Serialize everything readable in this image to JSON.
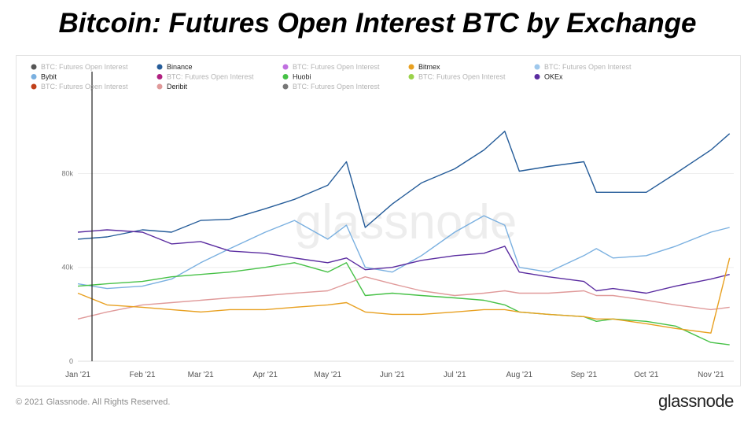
{
  "title": "Bitcoin: Futures Open Interest BTC by Exchange",
  "footer": {
    "copyright": "© 2021 Glassnode. All Rights Reserved.",
    "brand": "glassnode"
  },
  "watermark": "glassnode",
  "chart_data": {
    "type": "line",
    "title": "",
    "xlabel": "",
    "ylabel": "",
    "x_ticks": [
      "Jan '21",
      "Feb '21",
      "Mar '21",
      "Apr '21",
      "May '21",
      "Jun '21",
      "Jul '21",
      "Aug '21",
      "Sep '21",
      "Oct '21",
      "Nov '21"
    ],
    "y_ticks": [
      "0",
      "40k",
      "80k"
    ],
    "y_tick_values": [
      0,
      40000,
      80000
    ],
    "ylim": [
      0,
      110000
    ],
    "xlim": [
      "2021-01-01",
      "2021-11-12"
    ],
    "grid": true,
    "legend_placement": "top",
    "series_dates": [
      "2021-01-01",
      "2021-01-15",
      "2021-02-01",
      "2021-02-15",
      "2021-03-01",
      "2021-03-15",
      "2021-04-01",
      "2021-04-15",
      "2021-05-01",
      "2021-05-10",
      "2021-05-19",
      "2021-06-01",
      "2021-06-15",
      "2021-07-01",
      "2021-07-15",
      "2021-07-25",
      "2021-08-01",
      "2021-08-15",
      "2021-09-01",
      "2021-09-07",
      "2021-09-15",
      "2021-10-01",
      "2021-10-15",
      "2021-11-01",
      "2021-11-10"
    ],
    "series": [
      {
        "name": "Binance",
        "color": "#255c99",
        "values": [
          52000,
          53000,
          56000,
          55000,
          60000,
          60500,
          65000,
          69000,
          75000,
          85000,
          57000,
          67000,
          76000,
          82000,
          90000,
          98000,
          81000,
          83000,
          85000,
          72000,
          72000,
          72000,
          80000,
          90000,
          97000
        ]
      },
      {
        "name": "Bybit",
        "color": "#7ab0e0",
        "values": [
          33000,
          31000,
          32000,
          35000,
          42000,
          48000,
          55000,
          60000,
          52000,
          58000,
          40000,
          38000,
          45000,
          55000,
          62000,
          58000,
          40000,
          38000,
          45000,
          48000,
          44000,
          45000,
          49000,
          55000,
          57000
        ]
      },
      {
        "name": "OKEx",
        "color": "#5a2ca0",
        "values": [
          55000,
          56000,
          55000,
          50000,
          51000,
          47000,
          46000,
          44000,
          42000,
          44000,
          39000,
          40000,
          43000,
          45000,
          46000,
          49000,
          38000,
          36000,
          34000,
          30000,
          31000,
          29000,
          32000,
          35000,
          37000
        ]
      },
      {
        "name": "Huobi",
        "color": "#46c146",
        "values": [
          32000,
          33000,
          34000,
          36000,
          37000,
          38000,
          40000,
          42000,
          38000,
          42000,
          28000,
          29000,
          28000,
          27000,
          26000,
          24000,
          21000,
          20000,
          19000,
          17000,
          18000,
          17000,
          15000,
          8000,
          7000
        ]
      },
      {
        "name": "Deribit",
        "color": "#e09a9a",
        "values": [
          18000,
          21000,
          24000,
          25000,
          26000,
          27000,
          28000,
          29000,
          30000,
          33000,
          36000,
          33000,
          30000,
          28000,
          29000,
          30000,
          29000,
          29000,
          30000,
          28000,
          28000,
          26000,
          24000,
          22000,
          23000
        ]
      },
      {
        "name": "Bitmex",
        "color": "#e8a020",
        "values": [
          29000,
          24000,
          23000,
          22000,
          21000,
          22000,
          22000,
          23000,
          24000,
          25000,
          21000,
          20000,
          20000,
          21000,
          22000,
          22000,
          21000,
          20000,
          19000,
          18000,
          18000,
          16000,
          14000,
          12000,
          44000
        ]
      }
    ],
    "legend": [
      {
        "name": "BTC: Futures Open Interest",
        "color": "#555555",
        "faded": true
      },
      {
        "name": "Binance",
        "color": "#255c99",
        "faded": false
      },
      {
        "name": "BTC: Futures Open Interest",
        "color": "#c070e0",
        "faded": true
      },
      {
        "name": "Bitmex",
        "color": "#e8a020",
        "faded": false
      },
      {
        "name": "BTC: Futures Open Interest",
        "color": "#9fc8ec",
        "faded": true
      },
      {
        "name": "Bybit",
        "color": "#7ab0e0",
        "faded": false
      },
      {
        "name": "BTC: Futures Open Interest",
        "color": "#b02080",
        "faded": true
      },
      {
        "name": "Huobi",
        "color": "#46c146",
        "faded": false
      },
      {
        "name": "BTC: Futures Open Interest",
        "color": "#9ad24a",
        "faded": true
      },
      {
        "name": "OKEx",
        "color": "#5a2ca0",
        "faded": false
      },
      {
        "name": "BTC: Futures Open Interest",
        "color": "#c0401a",
        "faded": true
      },
      {
        "name": "Deribit",
        "color": "#e09a9a",
        "faded": false
      },
      {
        "name": "BTC: Futures Open Interest",
        "color": "#777777",
        "faded": true
      }
    ]
  }
}
